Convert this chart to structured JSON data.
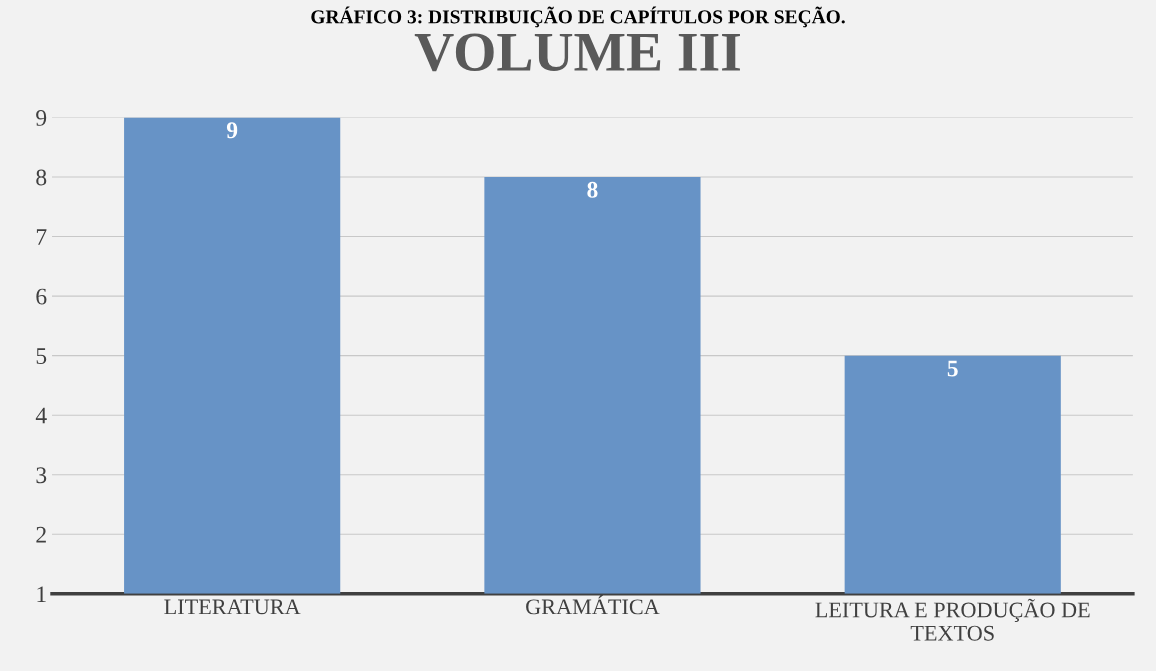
{
  "chart_data": {
    "type": "bar",
    "title": "VOLUME III",
    "annotations": [
      "GRÁFICO 3: DISTRIBUIÇÃO DE CAPÍTULOS POR SEÇÃO."
    ],
    "categories": [
      "LITERATURA",
      "GRAMÁTICA",
      "LEITURA E PRODUÇÃO DE TEXTOS"
    ],
    "values": [
      9,
      8,
      5
    ],
    "color": "#6793c6",
    "ylim": [
      1,
      9
    ],
    "yticks": [
      1,
      2,
      3,
      4,
      5,
      6,
      7,
      8,
      9
    ],
    "grid": "y",
    "data_labels": true
  }
}
